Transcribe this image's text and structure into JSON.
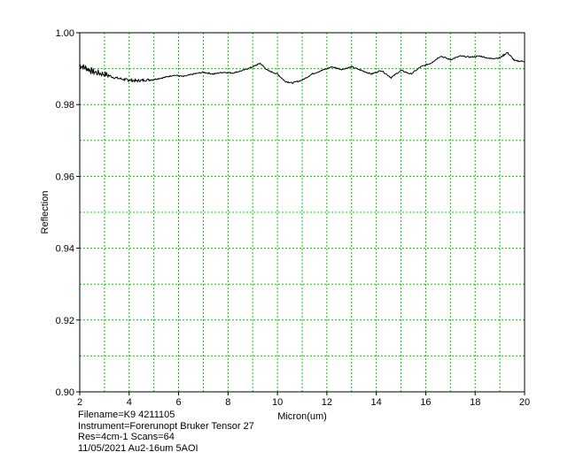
{
  "chart_data": {
    "type": "line",
    "xlabel": "Micron(um)",
    "ylabel": "Reflection",
    "xlim": [
      2,
      20
    ],
    "ylim": [
      0.9,
      1.0
    ],
    "x_ticks": [
      "2",
      "4",
      "6",
      "8",
      "10",
      "12",
      "14",
      "16",
      "18",
      "20"
    ],
    "y_ticks": [
      "0.90",
      "0.92",
      "0.94",
      "0.96",
      "0.98",
      "1.00"
    ],
    "grid": true,
    "colors": {
      "grid": "#00cc00",
      "line": "#000000",
      "frame": "#000000"
    },
    "series": [
      {
        "x": [
          2.0,
          2.3,
          2.6,
          3.0,
          3.4,
          3.8,
          4.0,
          4.3,
          4.6,
          5.0,
          5.4,
          5.8,
          6.2,
          6.6,
          7.0,
          7.4,
          7.8,
          8.2,
          8.6,
          9.0,
          9.3,
          9.6,
          10.0,
          10.3,
          10.6,
          11.0,
          11.4,
          11.8,
          12.2,
          12.6,
          13.0,
          13.4,
          13.8,
          14.2,
          14.6,
          15.0,
          15.4,
          15.8,
          16.2,
          16.6,
          17.0,
          17.4,
          17.8,
          18.2,
          18.6,
          19.0,
          19.3,
          19.6,
          20.0
        ],
        "y": [
          0.991,
          0.99,
          0.989,
          0.9885,
          0.9875,
          0.987,
          0.9868,
          0.9866,
          0.9868,
          0.987,
          0.9875,
          0.9882,
          0.9878,
          0.9885,
          0.989,
          0.9885,
          0.989,
          0.9888,
          0.9895,
          0.9905,
          0.9915,
          0.9895,
          0.9885,
          0.9865,
          0.986,
          0.9868,
          0.9885,
          0.9895,
          0.9905,
          0.9898,
          0.9905,
          0.9895,
          0.9885,
          0.9895,
          0.9875,
          0.9895,
          0.9885,
          0.9905,
          0.9915,
          0.9935,
          0.9925,
          0.9935,
          0.9932,
          0.9935,
          0.9928,
          0.993,
          0.9945,
          0.9922,
          0.992
        ]
      }
    ]
  },
  "info": {
    "line1": "Filename=K9 4211105",
    "line2": "Instrument=Forerunopt Bruker Tensor 27",
    "line3": "Res=4cm-1  Scans=64",
    "line4": "11/05/2021 Au2-16um 5AOI"
  }
}
